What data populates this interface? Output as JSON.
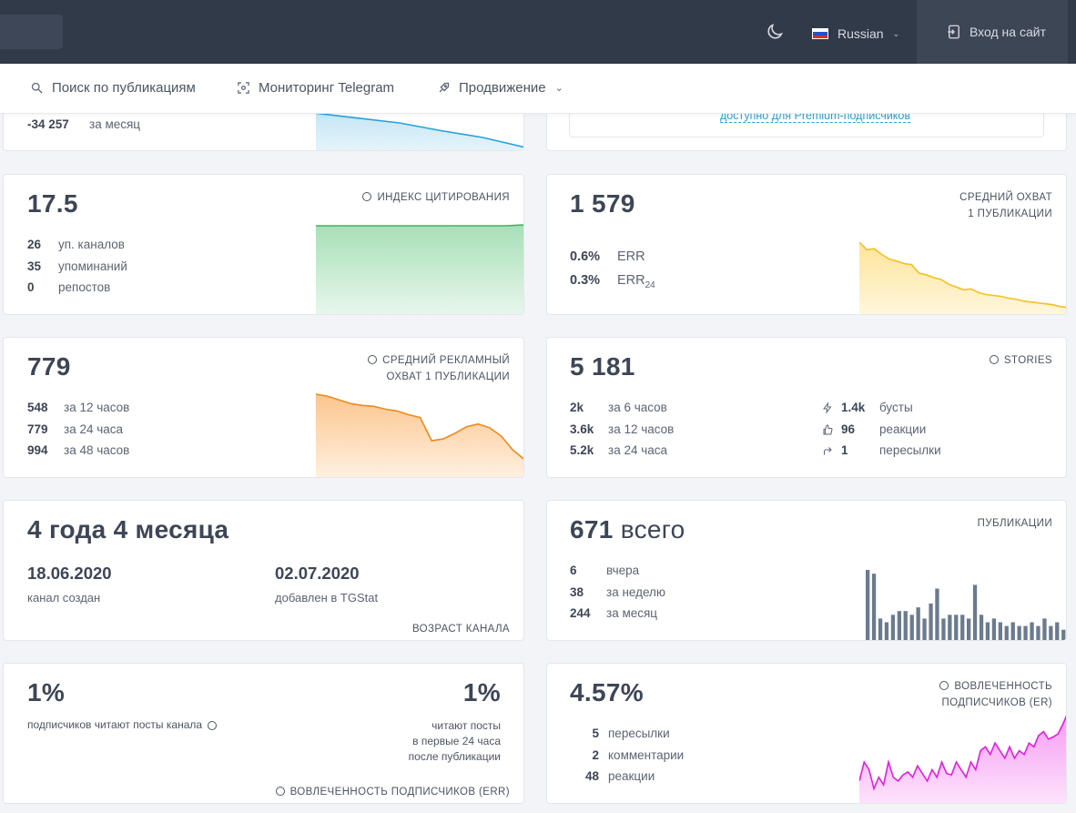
{
  "header": {
    "language": "Russian",
    "login_label": "Вход на сайт"
  },
  "nav": {
    "search": "Поиск по публикациям",
    "monitoring": "Мониторинг Telegram",
    "promotion": "Продвижение"
  },
  "subscribers": {
    "delta": "-34 257",
    "period": "за месяц"
  },
  "premium": {
    "note": "доступно для Premium-подписчиков"
  },
  "citation": {
    "value": "17.5",
    "label": "ИНДЕКС ЦИТИРОВАНИЯ",
    "rows": [
      {
        "num": "26",
        "text": "уп. каналов"
      },
      {
        "num": "35",
        "text": "упоминаний"
      },
      {
        "num": "0",
        "text": "репостов"
      }
    ]
  },
  "reach": {
    "value": "1 579",
    "label_line1": "СРЕДНИЙ ОХВАТ",
    "label_line2": "1 ПУБЛИКАЦИИ",
    "err": "0.6%",
    "err_label": "ERR",
    "err24": "0.3%",
    "err24_label": "ERR",
    "err24_sub": "24"
  },
  "ad_reach": {
    "value": "779",
    "label_line1": "СРЕДНИЙ РЕКЛАМНЫЙ",
    "label_line2": "ОХВАТ 1 ПУБЛИКАЦИИ",
    "rows": [
      {
        "num": "548",
        "text": "за 12 часов"
      },
      {
        "num": "779",
        "text": "за 24 часа"
      },
      {
        "num": "994",
        "text": "за 48 часов"
      }
    ]
  },
  "stories": {
    "value": "5 181",
    "label": "STORIES",
    "rows": [
      {
        "num": "2k",
        "text": "за 6 часов"
      },
      {
        "num": "3.6k",
        "text": "за 12 часов"
      },
      {
        "num": "5.2k",
        "text": "за 24 часа"
      }
    ],
    "stats": [
      {
        "icon": "lightning-icon",
        "num": "1.4k",
        "text": "бусты"
      },
      {
        "icon": "thumbs-up-icon",
        "num": "96",
        "text": "реакции"
      },
      {
        "icon": "share-arrow-icon",
        "num": "1",
        "text": "пересылки"
      }
    ]
  },
  "age": {
    "value": "4 года 4 месяца",
    "created_date": "18.06.2020",
    "created_label": "канал создан",
    "added_date": "02.07.2020",
    "added_label": "добавлен в TGStat",
    "label": "ВОЗРАСТ КАНАЛА"
  },
  "posts": {
    "value": "671",
    "value_suffix": "всего",
    "label": "ПУБЛИКАЦИИ",
    "rows": [
      {
        "num": "6",
        "text": "вчера"
      },
      {
        "num": "38",
        "text": "за неделю"
      },
      {
        "num": "244",
        "text": "за месяц"
      }
    ]
  },
  "err_card": {
    "left_value": "1%",
    "left_text": "подписчиков читают посты канала",
    "right_value": "1%",
    "right_line1": "читают посты",
    "right_line2": "в первые 24 часа",
    "right_line3": "после публикации",
    "label": "ВОВЛЕЧЕННОСТЬ ПОДПИСЧИКОВ (ERR)"
  },
  "er_card": {
    "value": "4.57%",
    "label_line1": "ВОВЛЕЧЕННОСТЬ",
    "label_line2": "ПОДПИСЧИКОВ (ER)",
    "rows": [
      {
        "num": "5",
        "text": "пересылки"
      },
      {
        "num": "2",
        "text": "комментарии"
      },
      {
        "num": "48",
        "text": "реакции"
      }
    ]
  },
  "colors": {
    "topbar": "#313a48",
    "green": "#3fb45f",
    "yellow": "#f3c020",
    "orange": "#f08a1c",
    "slate": "#6b7a8f",
    "magenta": "#e21de1",
    "cyan": "#2aa0d8",
    "red": "#ec5a5a"
  },
  "chart_data": [
    {
      "type": "area",
      "name": "citation",
      "values": [
        9.8,
        9.8,
        9.8,
        9.8,
        9.8,
        9.8,
        9.8,
        9.8,
        9.8,
        9.8,
        9.8,
        9.9
      ]
    },
    {
      "type": "area",
      "name": "reach",
      "values": [
        78,
        70,
        71,
        65,
        60,
        58,
        55,
        54,
        45,
        43,
        40,
        38,
        33,
        30,
        27,
        28,
        24,
        22,
        21,
        20,
        18,
        17,
        15,
        14,
        13,
        12,
        11,
        9,
        8
      ]
    },
    {
      "type": "area",
      "name": "ad_reach",
      "values": [
        90,
        88,
        84,
        80,
        78,
        77,
        74,
        72,
        68,
        65,
        40,
        42,
        48,
        55,
        58,
        54,
        45,
        30,
        20
      ]
    },
    {
      "type": "bar",
      "name": "posts",
      "values": [
        19,
        18,
        6,
        5,
        7,
        8,
        8,
        7,
        9,
        6,
        10,
        14,
        6,
        7,
        7,
        7,
        6,
        15,
        7,
        5,
        6,
        5,
        4,
        5,
        4,
        4,
        5,
        4,
        6,
        4,
        5,
        3
      ]
    },
    {
      "type": "area",
      "name": "er",
      "values": [
        30,
        55,
        45,
        20,
        35,
        25,
        55,
        35,
        30,
        38,
        42,
        35,
        50,
        40,
        30,
        45,
        35,
        55,
        40,
        38,
        55,
        45,
        35,
        55,
        45,
        70,
        75,
        65,
        80,
        70,
        60,
        75,
        60,
        70,
        65,
        80,
        75,
        90,
        95,
        85,
        88,
        92,
        105,
        120
      ]
    },
    {
      "type": "area",
      "name": "subscribers",
      "values": [
        40,
        35,
        30,
        22,
        15,
        5
      ]
    }
  ]
}
